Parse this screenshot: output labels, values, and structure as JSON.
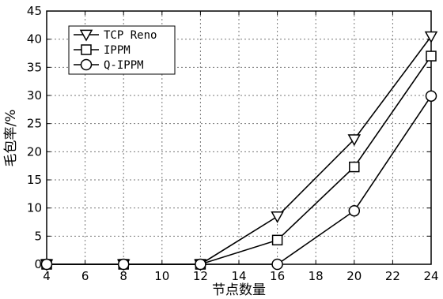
{
  "chart_data": {
    "type": "line",
    "title": "",
    "xlabel": "节点数量",
    "ylabel": "毛包率/%",
    "x": [
      4,
      8,
      12,
      16,
      20,
      24
    ],
    "xlim": [
      4,
      24
    ],
    "ylim": [
      0,
      45
    ],
    "xticks": [
      4,
      6,
      8,
      10,
      12,
      14,
      16,
      18,
      20,
      22,
      24
    ],
    "yticks": [
      0,
      5,
      10,
      15,
      20,
      25,
      30,
      35,
      40,
      45
    ],
    "grid": true,
    "legend_position": "top-left",
    "series": [
      {
        "name": "TCP Reno",
        "marker": "triangle-down",
        "values": [
          0,
          0,
          0,
          8.5,
          22.2,
          40.5
        ]
      },
      {
        "name": "IPPM",
        "marker": "square",
        "values": [
          0,
          0,
          0,
          4.3,
          17.3,
          37.0
        ]
      },
      {
        "name": "Q-IPPM",
        "marker": "circle",
        "values": [
          0,
          0,
          0,
          0,
          9.5,
          29.9
        ]
      }
    ]
  }
}
